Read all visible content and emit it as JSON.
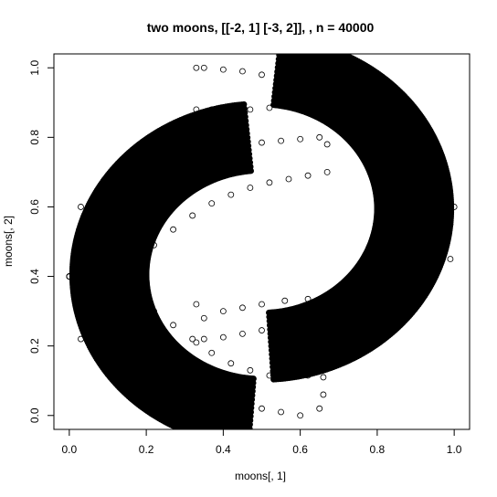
{
  "chart_data": {
    "type": "scatter",
    "title": "two moons, [[-2, 1] [-3, 2]], , n = 40000",
    "xlabel": "moons[, 1]",
    "ylabel": "moons[, 2]",
    "xlim": [
      -0.04,
      1.04
    ],
    "ylim": [
      -0.04,
      1.04
    ],
    "x_ticks": [
      0.0,
      0.2,
      0.4,
      0.6,
      0.8,
      1.0
    ],
    "x_tick_labels": [
      "0.0",
      "0.2",
      "0.4",
      "0.6",
      "0.8",
      "1.0"
    ],
    "y_ticks": [
      0.0,
      0.2,
      0.4,
      0.6,
      0.8,
      1.0
    ],
    "y_tick_labels": [
      "0.0",
      "0.2",
      "0.4",
      "0.6",
      "0.8",
      "1.0"
    ],
    "grid": false,
    "legend": "none",
    "marker": "open-circle",
    "color": "#000000",
    "n": 40000,
    "series": [
      {
        "shape": "lower-left crescent",
        "x": [
          0.0,
          0.02,
          0.04,
          0.08,
          0.12,
          0.16,
          0.2,
          0.25,
          0.3,
          0.35,
          0.4,
          0.45,
          0.5,
          0.55,
          0.6,
          0.65,
          0.66,
          0.66,
          0.62,
          0.57,
          0.52,
          0.47,
          0.42,
          0.37,
          0.32,
          0.27,
          0.22,
          0.18,
          0.14,
          0.1,
          0.06,
          0.03,
          0.0
        ],
        "y": [
          0.4,
          0.34,
          0.3,
          0.25,
          0.2,
          0.16,
          0.13,
          0.1,
          0.075,
          0.055,
          0.04,
          0.03,
          0.02,
          0.01,
          0.0,
          0.02,
          0.06,
          0.11,
          0.115,
          0.115,
          0.115,
          0.13,
          0.15,
          0.18,
          0.22,
          0.26,
          0.3,
          0.35,
          0.4,
          0.47,
          0.55,
          0.6,
          0.4
        ]
      },
      {
        "shape": "upper band of left moon",
        "x": [
          0.0,
          0.02,
          0.05,
          0.1,
          0.15,
          0.2,
          0.25,
          0.3,
          0.35,
          0.4,
          0.45,
          0.5,
          0.55,
          0.6,
          0.65,
          0.67,
          0.67,
          0.62,
          0.57,
          0.52,
          0.47,
          0.42,
          0.37,
          0.32,
          0.27,
          0.22,
          0.17,
          0.12,
          0.08,
          0.05,
          0.03,
          0.0
        ],
        "y": [
          0.4,
          0.47,
          0.53,
          0.6,
          0.645,
          0.68,
          0.71,
          0.735,
          0.755,
          0.77,
          0.78,
          0.785,
          0.79,
          0.795,
          0.8,
          0.78,
          0.7,
          0.69,
          0.68,
          0.67,
          0.655,
          0.635,
          0.61,
          0.575,
          0.535,
          0.49,
          0.44,
          0.39,
          0.33,
          0.27,
          0.22,
          0.4
        ]
      },
      {
        "shape": "upper-right crescent",
        "x": [
          0.33,
          0.35,
          0.4,
          0.45,
          0.5,
          0.55,
          0.6,
          0.65,
          0.7,
          0.75,
          0.8,
          0.85,
          0.9,
          0.94,
          0.97,
          0.99,
          1.0,
          0.99,
          0.96,
          0.92,
          0.86,
          0.8,
          0.74,
          0.68,
          0.62,
          0.56,
          0.5,
          0.45,
          0.4,
          0.35,
          0.33
        ],
        "y": [
          1.0,
          1.0,
          0.995,
          0.99,
          0.98,
          0.965,
          0.94,
          0.915,
          0.88,
          0.84,
          0.79,
          0.73,
          0.66,
          0.58,
          0.5,
          0.45,
          0.6,
          0.55,
          0.48,
          0.43,
          0.4,
          0.375,
          0.36,
          0.345,
          0.335,
          0.33,
          0.32,
          0.31,
          0.3,
          0.28,
          0.32
        ]
      },
      {
        "shape": "inner edge of right moon",
        "x": [
          0.33,
          0.35,
          0.4,
          0.45,
          0.5,
          0.55,
          0.6,
          0.65,
          0.7,
          0.75,
          0.8,
          0.84,
          0.87,
          0.89,
          0.9,
          0.89,
          0.86,
          0.82,
          0.77,
          0.72,
          0.67,
          0.62,
          0.57,
          0.52,
          0.47,
          0.42,
          0.37,
          0.33
        ],
        "y": [
          0.21,
          0.22,
          0.225,
          0.235,
          0.245,
          0.26,
          0.275,
          0.3,
          0.33,
          0.37,
          0.42,
          0.48,
          0.54,
          0.6,
          0.66,
          0.72,
          0.77,
          0.81,
          0.84,
          0.865,
          0.88,
          0.885,
          0.89,
          0.885,
          0.88,
          0.875,
          0.88,
          0.88
        ]
      }
    ]
  }
}
